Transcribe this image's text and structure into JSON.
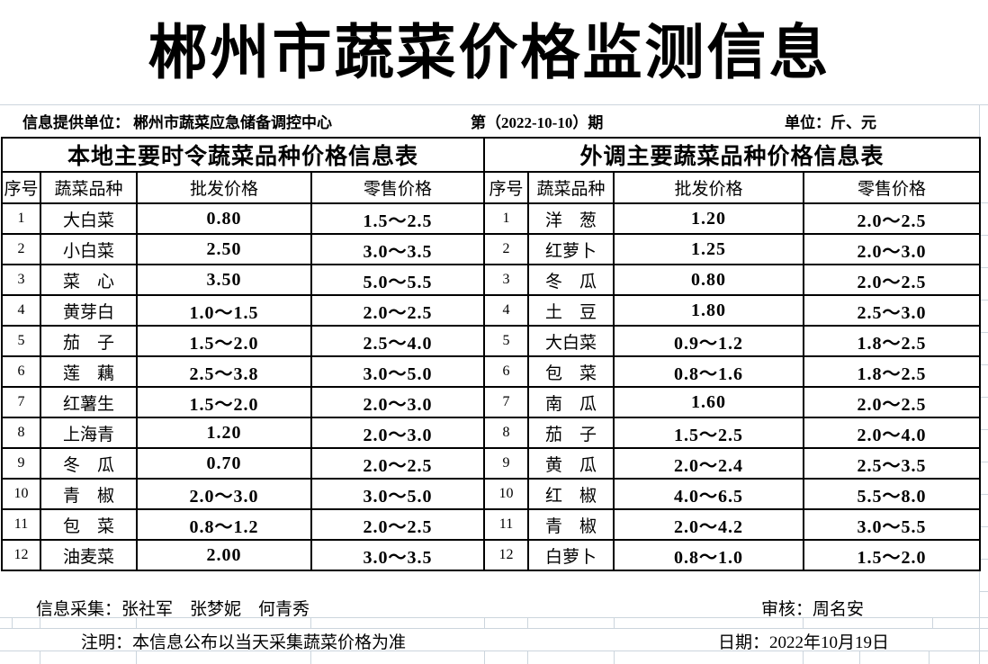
{
  "title": "郴州市蔬菜价格监测信息",
  "info_bar": {
    "provider_label": "信息提供单位：",
    "provider_value": "郴州市蔬菜应急储备调控中心",
    "issue": "第（2022-10-10）期",
    "unit": "单位：斤、元"
  },
  "columns": [
    "序号",
    "蔬菜品种",
    "批发价格",
    "零售价格"
  ],
  "local_table": {
    "title": "本地主要时令蔬菜品种价格信息表",
    "rows": [
      {
        "no": "1",
        "name": "大白菜",
        "wholesale": "0.80",
        "retail": "1.5～2.5"
      },
      {
        "no": "2",
        "name": "小白菜",
        "wholesale": "2.50",
        "retail": "3.0～3.5"
      },
      {
        "no": "3",
        "name": "菜　心",
        "wholesale": "3.50",
        "retail": "5.0～5.5"
      },
      {
        "no": "4",
        "name": "黄芽白",
        "wholesale": "1.0～1.5",
        "retail": "2.0～2.5"
      },
      {
        "no": "5",
        "name": "茄　子",
        "wholesale": "1.5～2.0",
        "retail": "2.5～4.0"
      },
      {
        "no": "6",
        "name": "莲　藕",
        "wholesale": "2.5～3.8",
        "retail": "3.0～5.0"
      },
      {
        "no": "7",
        "name": "红薯生",
        "wholesale": "1.5～2.0",
        "retail": "2.0～3.0"
      },
      {
        "no": "8",
        "name": "上海青",
        "wholesale": "1.20",
        "retail": "2.0～3.0"
      },
      {
        "no": "9",
        "name": "冬　瓜",
        "wholesale": "0.70",
        "retail": "2.0～2.5"
      },
      {
        "no": "10",
        "name": "青　椒",
        "wholesale": "2.0～3.0",
        "retail": "3.0～5.0"
      },
      {
        "no": "11",
        "name": "包　菜",
        "wholesale": "0.8～1.2",
        "retail": "2.0～2.5"
      },
      {
        "no": "12",
        "name": "油麦菜",
        "wholesale": "2.00",
        "retail": "3.0～3.5"
      }
    ]
  },
  "external_table": {
    "title": "外调主要蔬菜品种价格信息表",
    "rows": [
      {
        "no": "1",
        "name": "洋　葱",
        "wholesale": "1.20",
        "retail": "2.0～2.5"
      },
      {
        "no": "2",
        "name": "红萝卜",
        "wholesale": "1.25",
        "retail": "2.0～3.0"
      },
      {
        "no": "3",
        "name": "冬　瓜",
        "wholesale": "0.80",
        "retail": "2.0～2.5"
      },
      {
        "no": "4",
        "name": "土　豆",
        "wholesale": "1.80",
        "retail": "2.5～3.0"
      },
      {
        "no": "5",
        "name": "大白菜",
        "wholesale": "0.9～1.2",
        "retail": "1.8～2.5"
      },
      {
        "no": "6",
        "name": "包　菜",
        "wholesale": "0.8～1.6",
        "retail": "1.8～2.5"
      },
      {
        "no": "7",
        "name": "南　瓜",
        "wholesale": "1.60",
        "retail": "2.0～2.5"
      },
      {
        "no": "8",
        "name": "茄　子",
        "wholesale": "1.5～2.5",
        "retail": "2.0～4.0"
      },
      {
        "no": "9",
        "name": "黄　瓜",
        "wholesale": "2.0～2.4",
        "retail": "2.5～3.5"
      },
      {
        "no": "10",
        "name": "红　椒",
        "wholesale": "4.0～6.5",
        "retail": "5.5～8.0"
      },
      {
        "no": "11",
        "name": "青　椒",
        "wholesale": "2.0～4.2",
        "retail": "3.0～5.5"
      },
      {
        "no": "12",
        "name": "白萝卜",
        "wholesale": "0.8～1.0",
        "retail": "1.5～2.0"
      }
    ]
  },
  "footer": {
    "collectors": "信息采集：张社军　张梦妮　何青秀",
    "auditor": "审核：周名安",
    "note": "注明：本信息公布以当天采集蔬菜价格为准",
    "date": "日期：2022年10月19日"
  },
  "colors": {
    "text": "#000000",
    "table_border": "#000000",
    "gridline": "#ccd5dd",
    "background": "#ffffff"
  }
}
